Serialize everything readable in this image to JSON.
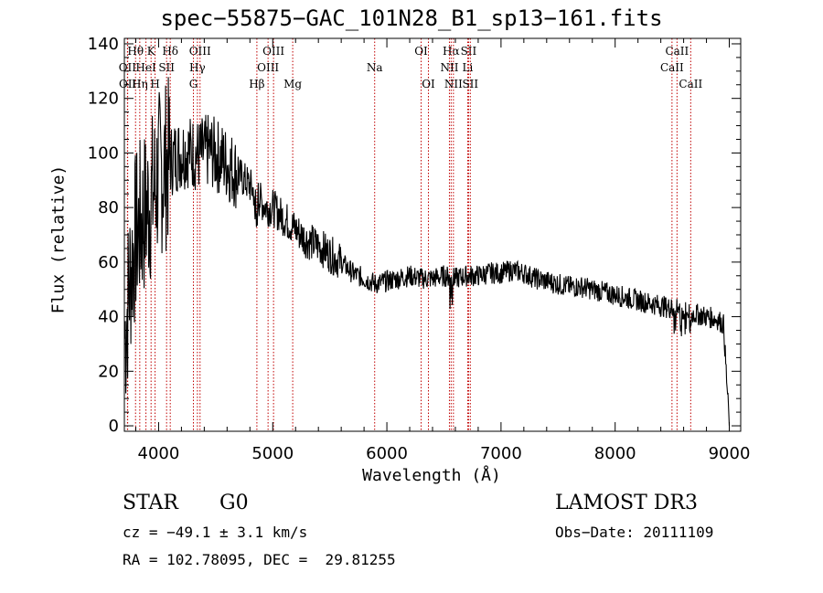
{
  "chart_data": {
    "type": "line",
    "title": "spec−55875−GAC_101N28_B1_sp13−161.fits",
    "xlabel": "Wavelength (Å)",
    "ylabel": "Flux (relative)",
    "xlim": [
      3700,
      9100
    ],
    "ylim": [
      -2,
      142
    ],
    "xticks": [
      4000,
      5000,
      6000,
      7000,
      8000,
      9000
    ],
    "yticks": [
      0,
      20,
      40,
      60,
      80,
      100,
      120,
      140
    ],
    "grid": false,
    "series": [
      {
        "name": "flux",
        "x": [
          3700,
          3750,
          3800,
          3850,
          3900,
          3950,
          4000,
          4050,
          4100,
          4150,
          4200,
          4250,
          4300,
          4350,
          4400,
          4450,
          4500,
          4550,
          4600,
          4650,
          4700,
          4750,
          4800,
          4850,
          4900,
          4950,
          5000,
          5100,
          5200,
          5300,
          5400,
          5500,
          5600,
          5700,
          5800,
          5900,
          6000,
          6100,
          6200,
          6300,
          6400,
          6500,
          6600,
          6700,
          6800,
          6900,
          7000,
          7100,
          7200,
          7300,
          7400,
          7500,
          7600,
          7700,
          7800,
          7900,
          8000,
          8100,
          8200,
          8300,
          8400,
          8500,
          8600,
          8700,
          8800,
          8900,
          8950,
          9000
        ],
        "y": [
          30,
          55,
          70,
          75,
          80,
          85,
          92,
          95,
          97,
          99,
          100,
          101,
          100,
          99,
          100,
          101,
          99,
          98,
          96,
          94,
          92,
          90,
          88,
          85,
          82,
          80,
          80,
          76,
          72,
          68,
          66,
          63,
          60,
          56,
          54,
          52,
          53,
          54,
          55,
          54,
          54,
          55,
          54,
          55,
          55,
          56,
          56,
          57,
          56,
          54,
          53,
          52,
          51,
          51,
          50,
          49,
          48,
          47,
          46,
          45,
          44,
          43,
          42,
          41,
          40,
          39,
          37,
          0
        ]
      }
    ],
    "lines": [
      {
        "label": "Hθ",
        "wave": 3798,
        "row": 1
      },
      {
        "label": "OII",
        "wave": 3727,
        "row": 2
      },
      {
        "label": "OII",
        "wave": 3729,
        "row": 3
      },
      {
        "label": "K",
        "wave": 3934,
        "row": 1
      },
      {
        "label": "HeI",
        "wave": 3889,
        "row": 2
      },
      {
        "label": "Hη",
        "wave": 3835,
        "row": 3
      },
      {
        "label": "H",
        "wave": 3969,
        "row": 3
      },
      {
        "label": "Hδ",
        "wave": 4102,
        "row": 1
      },
      {
        "label": "SII",
        "wave": 4070,
        "row": 2
      },
      {
        "label": "OIII",
        "wave": 4363,
        "row": 1
      },
      {
        "label": "Hγ",
        "wave": 4340,
        "row": 2
      },
      {
        "label": "G",
        "wave": 4305,
        "row": 3
      },
      {
        "label": "OIII",
        "wave": 5007,
        "row": 1
      },
      {
        "label": "OIII",
        "wave": 4959,
        "row": 2
      },
      {
        "label": "Hβ",
        "wave": 4861,
        "row": 3
      },
      {
        "label": "Mg",
        "wave": 5175,
        "row": 3
      },
      {
        "label": "Na",
        "wave": 5893,
        "row": 2
      },
      {
        "label": "OI",
        "wave": 6300,
        "row": 1
      },
      {
        "label": "OI",
        "wave": 6364,
        "row": 3
      },
      {
        "label": "Hα",
        "wave": 6563,
        "row": 1
      },
      {
        "label": "SII",
        "wave": 6716,
        "row": 1
      },
      {
        "label": "NII",
        "wave": 6548,
        "row": 2
      },
      {
        "label": "Li",
        "wave": 6708,
        "row": 2
      },
      {
        "label": "NII",
        "wave": 6583,
        "row": 3
      },
      {
        "label": "SII",
        "wave": 6731,
        "row": 3
      },
      {
        "label": "CaII",
        "wave": 8542,
        "row": 1
      },
      {
        "label": "CaII",
        "wave": 8498,
        "row": 2
      },
      {
        "label": "CaII",
        "wave": 8662,
        "row": 3
      }
    ]
  },
  "info": {
    "object_class": "STAR",
    "subclass": "G0",
    "survey": "LAMOST DR3",
    "redshift": "cz = −49.1 ± 3.1 km/s",
    "obs_date": "Obs−Date: 20111109",
    "coords": "RA = 102.78095, DEC =  29.81255"
  }
}
